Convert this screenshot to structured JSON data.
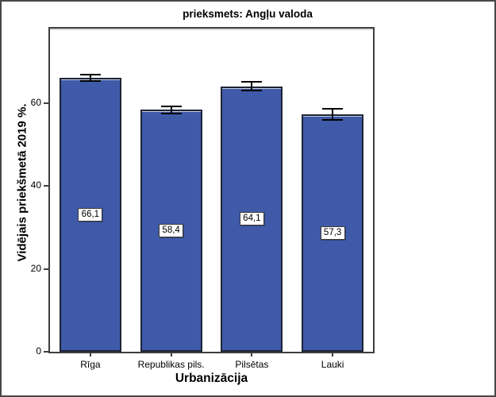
{
  "chart": {
    "title": "prieksmets: Angļu valoda",
    "y_axis_label": "Vidējais priekšmetā 2019 %.",
    "x_axis_label": "Urbanizācija"
  },
  "chart_data": {
    "type": "bar",
    "title": "prieksmets: Angļu valoda",
    "xlabel": "Urbanizācija",
    "ylabel": "Vidējais priekšmetā 2019 %.",
    "categories": [
      "Rīga",
      "Republikas pils.",
      "Pilsētas",
      "Lauki"
    ],
    "values": [
      66.1,
      58.4,
      64.1,
      57.3
    ],
    "value_labels": [
      "66,1",
      "58,4",
      "64,1",
      "57,3"
    ],
    "error_bars": [
      0.8,
      0.9,
      1.0,
      1.3
    ],
    "yticks": [
      0,
      20,
      40,
      60
    ],
    "ylim": [
      0,
      78
    ],
    "grid": false,
    "legend": null,
    "bar_fill": "#3F5AA8",
    "bar_border": "#1E2436",
    "error_bar_color": "#000000",
    "axis_color": "#3E3E3E"
  }
}
